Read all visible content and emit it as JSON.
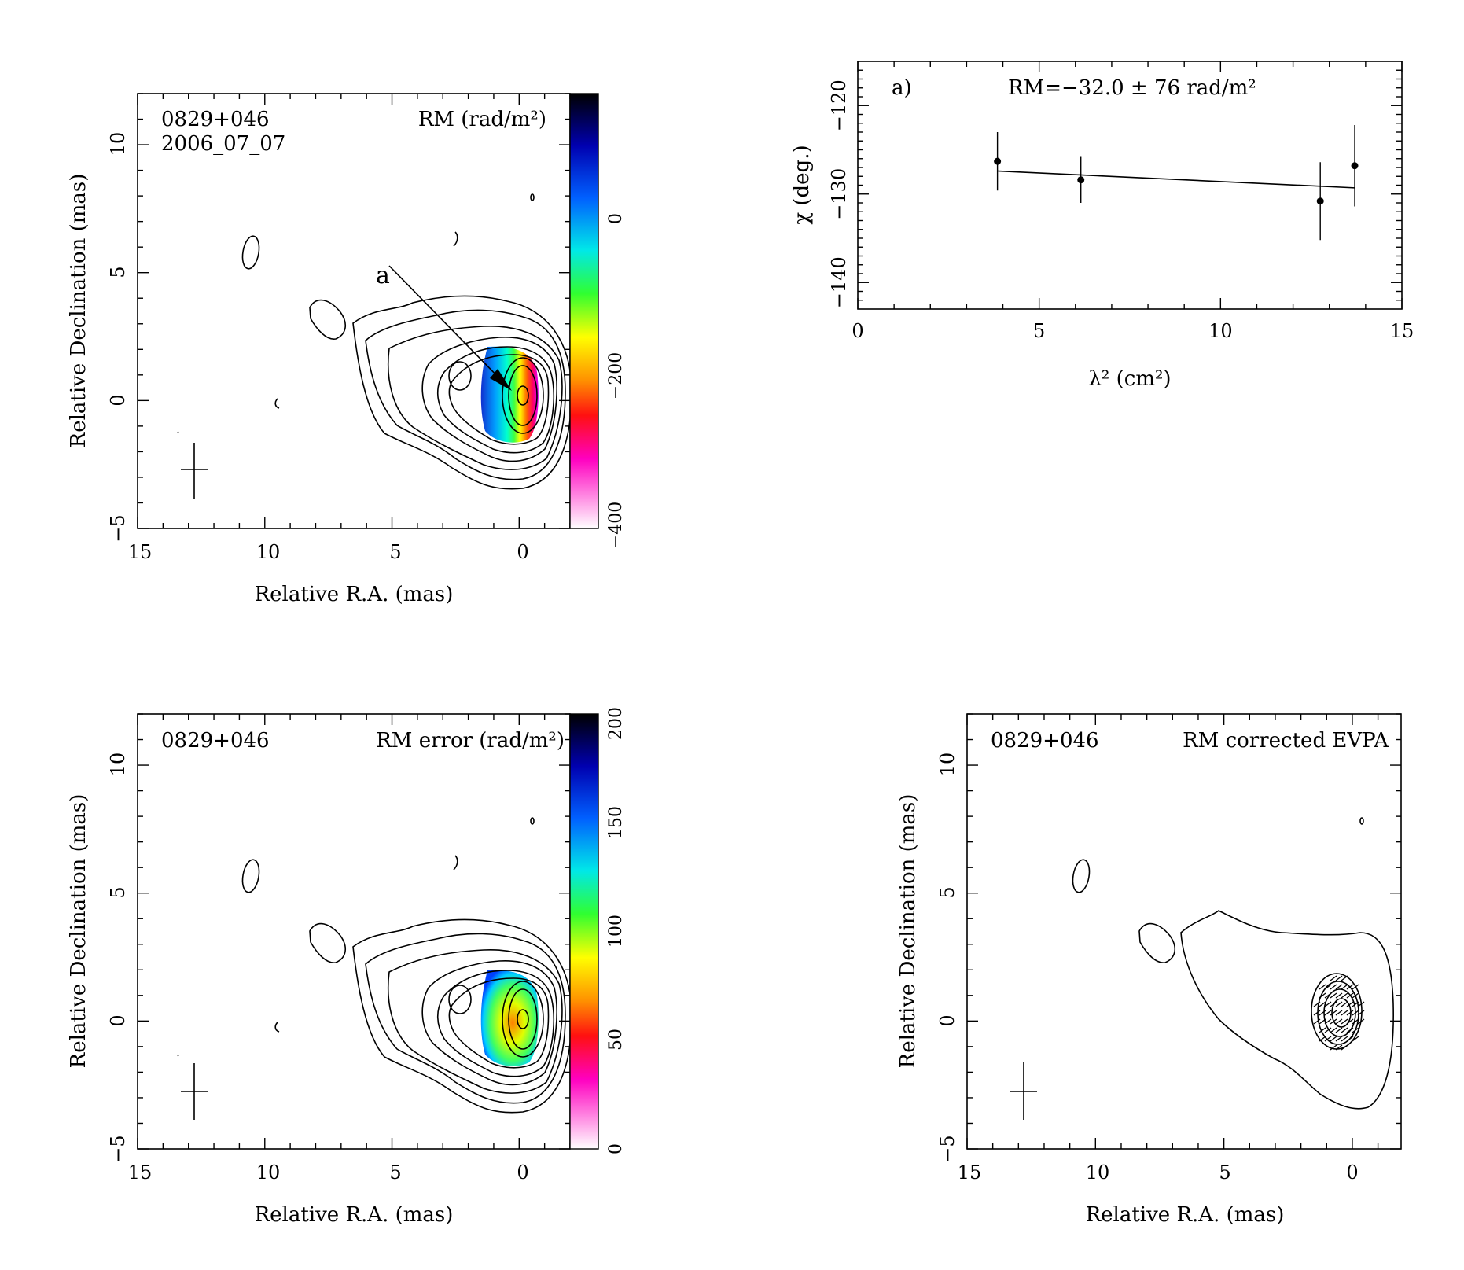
{
  "colors": {
    "axis": "#000000",
    "contour": "#000000",
    "background": "#ffffff"
  },
  "chart_data": [
    {
      "type": "image",
      "panel": "rm-map",
      "source_label": "0829+046",
      "date_label": "2006_07_07",
      "map_label": "RM (rad/m²)",
      "xlabel": "Relative R.A. (mas)",
      "ylabel": "Relative Declination (mas)",
      "xlim": [
        15,
        -3
      ],
      "ylim": [
        -5,
        12
      ],
      "xticks": [
        "15",
        "10",
        "5",
        "0"
      ],
      "yticks": [
        "−5",
        "0",
        "5",
        "10"
      ],
      "colorbar": {
        "range": [
          -420,
          180
        ],
        "ticks": [
          "0",
          "−200",
          "−400"
        ]
      },
      "annotation": "a"
    },
    {
      "type": "scatter",
      "panel": "rm-fit",
      "panel_label": "a)",
      "fit_label": "RM=−32.0 ± 76 rad/m²",
      "xlabel": "λ² (cm²)",
      "ylabel": "χ (deg.)",
      "xlim": [
        0,
        15
      ],
      "ylim": [
        -143,
        -115
      ],
      "xticks": [
        "0",
        "5",
        "10",
        "15"
      ],
      "yticks": [
        "−140",
        "−130",
        "−120"
      ],
      "points": [
        {
          "x": 3.85,
          "y": -126.3,
          "err": 3.3
        },
        {
          "x": 6.15,
          "y": -128.4,
          "err": 2.6
        },
        {
          "x": 12.75,
          "y": -130.8,
          "err": 4.4
        },
        {
          "x": 13.7,
          "y": -126.8,
          "err": 4.6
        }
      ],
      "fit": [
        {
          "x": 3.85,
          "y": -127.4
        },
        {
          "x": 13.7,
          "y": -129.3
        }
      ]
    },
    {
      "type": "image",
      "panel": "rm-error-map",
      "source_label": "0829+046",
      "map_label": "RM error (rad/m²)",
      "xlabel": "Relative R.A. (mas)",
      "ylabel": "Relative Declination (mas)",
      "xlim": [
        15,
        -3
      ],
      "ylim": [
        -5,
        12
      ],
      "xticks": [
        "15",
        "10",
        "5",
        "0"
      ],
      "yticks": [
        "−5",
        "0",
        "5",
        "10"
      ],
      "colorbar": {
        "range": [
          0,
          200
        ],
        "ticks": [
          "0",
          "50",
          "100",
          "150",
          "200"
        ]
      }
    },
    {
      "type": "image",
      "panel": "evpa-map",
      "source_label": "0829+046",
      "map_label": "RM corrected EVPA",
      "xlabel": "Relative R.A. (mas)",
      "ylabel": "Relative Declination (mas)",
      "xlim": [
        15,
        -2
      ],
      "ylim": [
        -5,
        12
      ],
      "xticks": [
        "15",
        "10",
        "5",
        "0"
      ],
      "yticks": [
        "−5",
        "0",
        "5",
        "10"
      ]
    }
  ]
}
